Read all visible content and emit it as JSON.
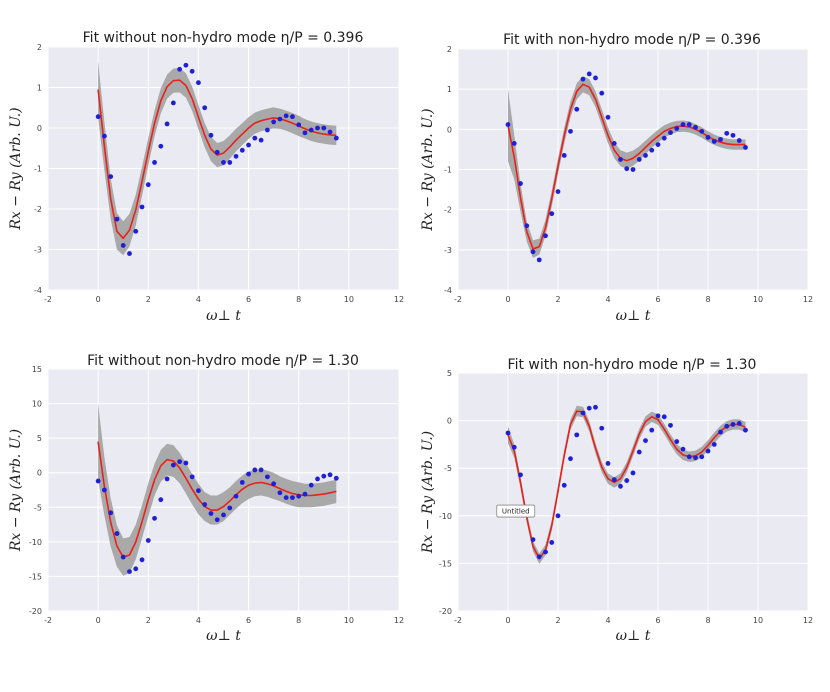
{
  "style": {
    "plot_bg": "#EAEAF2",
    "grid": "#FFFFFF",
    "band_color": "#A9A9A9",
    "fit_color": "#E8211B",
    "point_color": "#1F1FD6"
  },
  "chart_data": [
    {
      "type": "line",
      "title": "Fit without non-hydro mode η/P = 0.396",
      "xlabel": "ω⊥ t",
      "ylabel": "Rx − Ry (Arb. U.)",
      "xlim": [
        -2,
        12
      ],
      "ylim": [
        -4,
        2
      ],
      "xticks": [
        -2,
        0,
        2,
        4,
        6,
        8,
        10,
        12
      ],
      "yticks": [
        -4,
        -3,
        -2,
        -1,
        0,
        1,
        2
      ],
      "grid": true,
      "data_points": {
        "x": [
          0.0,
          0.25,
          0.5,
          0.75,
          1.0,
          1.25,
          1.5,
          1.75,
          2.0,
          2.25,
          2.5,
          2.75,
          3.0,
          3.25,
          3.5,
          3.75,
          4.0,
          4.25,
          4.5,
          4.75,
          5.0,
          5.25,
          5.5,
          5.75,
          6.0,
          6.25,
          6.5,
          6.75,
          7.0,
          7.25,
          7.5,
          7.75,
          8.0,
          8.25,
          8.5,
          8.75,
          9.0,
          9.25,
          9.5
        ],
        "y": [
          0.28,
          -0.2,
          -1.2,
          -2.25,
          -2.9,
          -3.1,
          -2.55,
          -1.95,
          -1.4,
          -0.85,
          -0.45,
          0.1,
          0.62,
          1.45,
          1.55,
          1.4,
          1.12,
          0.5,
          -0.18,
          -0.6,
          -0.85,
          -0.85,
          -0.7,
          -0.55,
          -0.42,
          -0.25,
          -0.3,
          -0.05,
          0.15,
          0.22,
          0.3,
          0.28,
          0.08,
          -0.12,
          -0.05,
          0.0,
          0.0,
          -0.1,
          -0.25
        ]
      },
      "fit": {
        "x": [
          0.0,
          0.25,
          0.5,
          0.75,
          1.0,
          1.25,
          1.5,
          1.75,
          2.0,
          2.25,
          2.5,
          2.75,
          3.0,
          3.25,
          3.5,
          3.75,
          4.0,
          4.25,
          4.5,
          4.75,
          5.0,
          5.25,
          5.5,
          5.75,
          6.0,
          6.25,
          6.5,
          6.75,
          7.0,
          7.25,
          7.5,
          7.75,
          8.0,
          8.25,
          8.5,
          8.75,
          9.0,
          9.25,
          9.5
        ],
        "y": [
          0.95,
          -0.45,
          -1.75,
          -2.55,
          -2.72,
          -2.52,
          -2.02,
          -1.32,
          -0.58,
          0.12,
          0.67,
          1.02,
          1.17,
          1.18,
          1.05,
          0.72,
          0.27,
          -0.18,
          -0.52,
          -0.67,
          -0.62,
          -0.47,
          -0.3,
          -0.15,
          0.0,
          0.12,
          0.18,
          0.22,
          0.25,
          0.23,
          0.18,
          0.12,
          0.05,
          -0.02,
          -0.08,
          -0.12,
          -0.15,
          -0.17,
          -0.18
        ]
      },
      "band_halfwidth": [
        0.7,
        0.6,
        0.5,
        0.45,
        0.42,
        0.4,
        0.38,
        0.36,
        0.34,
        0.32,
        0.31,
        0.3,
        0.3,
        0.3,
        0.3,
        0.3,
        0.3,
        0.3,
        0.3,
        0.3,
        0.3,
        0.29,
        0.28,
        0.27,
        0.27,
        0.26,
        0.26,
        0.26,
        0.26,
        0.25,
        0.25,
        0.25,
        0.25,
        0.24,
        0.24,
        0.24,
        0.24,
        0.24,
        0.24
      ]
    },
    {
      "type": "line",
      "title": "Fit with non-hydro mode η/P = 0.396",
      "xlabel": "ω⊥ t",
      "ylabel": "Rx − Ry (Arb. U.)",
      "xlim": [
        -2,
        12
      ],
      "ylim": [
        -4,
        2
      ],
      "xticks": [
        -2,
        0,
        2,
        4,
        6,
        8,
        10,
        12
      ],
      "yticks": [
        -4,
        -3,
        -2,
        -1,
        0,
        1,
        2
      ],
      "grid": true,
      "data_points": {
        "x": [
          0.0,
          0.25,
          0.5,
          0.75,
          1.0,
          1.25,
          1.5,
          1.75,
          2.0,
          2.25,
          2.5,
          2.75,
          3.0,
          3.25,
          3.5,
          3.75,
          4.0,
          4.25,
          4.5,
          4.75,
          5.0,
          5.25,
          5.5,
          5.75,
          6.0,
          6.25,
          6.5,
          6.75,
          7.0,
          7.25,
          7.5,
          7.75,
          8.0,
          8.25,
          8.5,
          8.75,
          9.0,
          9.25,
          9.5
        ],
        "y": [
          0.12,
          -0.35,
          -1.35,
          -2.4,
          -3.05,
          -3.25,
          -2.65,
          -2.1,
          -1.55,
          -0.65,
          -0.05,
          0.5,
          1.25,
          1.38,
          1.28,
          0.9,
          0.3,
          -0.35,
          -0.75,
          -0.98,
          -1.0,
          -0.75,
          -0.65,
          -0.52,
          -0.38,
          -0.22,
          -0.08,
          0.02,
          0.12,
          0.12,
          0.05,
          -0.05,
          -0.2,
          -0.3,
          -0.25,
          -0.1,
          -0.15,
          -0.28,
          -0.45
        ]
      },
      "fit": {
        "x": [
          0.0,
          0.25,
          0.5,
          0.75,
          1.0,
          1.25,
          1.5,
          1.75,
          2.0,
          2.25,
          2.5,
          2.75,
          3.0,
          3.25,
          3.5,
          3.75,
          4.0,
          4.25,
          4.5,
          4.75,
          5.0,
          5.25,
          5.5,
          5.75,
          6.0,
          6.25,
          6.5,
          6.75,
          7.0,
          7.25,
          7.5,
          7.75,
          8.0,
          8.25,
          8.5,
          8.75,
          9.0,
          9.25,
          9.5
        ],
        "y": [
          0.1,
          -0.7,
          -1.7,
          -2.55,
          -2.98,
          -2.92,
          -2.45,
          -1.72,
          -0.92,
          -0.15,
          0.5,
          0.95,
          1.12,
          1.05,
          0.75,
          0.3,
          -0.15,
          -0.52,
          -0.72,
          -0.78,
          -0.72,
          -0.6,
          -0.45,
          -0.3,
          -0.17,
          -0.05,
          0.02,
          0.07,
          0.08,
          0.06,
          0.0,
          -0.08,
          -0.18,
          -0.26,
          -0.32,
          -0.36,
          -0.38,
          -0.38,
          -0.38
        ]
      },
      "band_halfwidth": [
        0.9,
        0.55,
        0.35,
        0.25,
        0.22,
        0.2,
        0.2,
        0.2,
        0.2,
        0.2,
        0.2,
        0.2,
        0.2,
        0.2,
        0.2,
        0.2,
        0.2,
        0.2,
        0.2,
        0.2,
        0.19,
        0.18,
        0.17,
        0.16,
        0.16,
        0.15,
        0.15,
        0.14,
        0.14,
        0.14,
        0.13,
        0.13,
        0.13,
        0.13,
        0.13,
        0.13,
        0.13,
        0.13,
        0.13
      ]
    },
    {
      "type": "line",
      "title": "Fit without non-hydro mode η/P = 1.30",
      "xlabel": "ω⊥ t",
      "ylabel": "Rx − Ry (Arb. U.)",
      "xlim": [
        -2,
        12
      ],
      "ylim": [
        -20,
        15
      ],
      "xticks": [
        -2,
        0,
        2,
        4,
        6,
        8,
        10,
        12
      ],
      "yticks": [
        -20,
        -15,
        -10,
        -5,
        0,
        5,
        10,
        15
      ],
      "grid": true,
      "data_points": {
        "x": [
          0.0,
          0.25,
          0.5,
          0.75,
          1.0,
          1.25,
          1.5,
          1.75,
          2.0,
          2.25,
          2.5,
          2.75,
          3.0,
          3.25,
          3.5,
          3.75,
          4.0,
          4.25,
          4.5,
          4.75,
          5.0,
          5.25,
          5.5,
          5.75,
          6.0,
          6.25,
          6.5,
          6.75,
          7.0,
          7.25,
          7.5,
          7.75,
          8.0,
          8.25,
          8.5,
          8.75,
          9.0,
          9.25,
          9.5
        ],
        "y": [
          -1.2,
          -2.5,
          -5.8,
          -8.8,
          -12.2,
          -14.3,
          -13.9,
          -12.6,
          -9.8,
          -6.6,
          -3.9,
          -0.9,
          1.1,
          1.6,
          1.4,
          -0.6,
          -2.6,
          -4.6,
          -5.9,
          -6.8,
          -6.1,
          -5.1,
          -3.4,
          -1.4,
          -0.2,
          0.4,
          0.4,
          -0.6,
          -1.6,
          -2.9,
          -3.6,
          -3.6,
          -3.4,
          -3.1,
          -1.8,
          -0.9,
          -0.5,
          -0.3,
          -0.8
        ]
      },
      "fit": {
        "x": [
          0.0,
          0.25,
          0.5,
          0.75,
          1.0,
          1.25,
          1.5,
          1.75,
          2.0,
          2.25,
          2.5,
          2.75,
          3.0,
          3.25,
          3.5,
          3.75,
          4.0,
          4.25,
          4.5,
          4.75,
          5.0,
          5.25,
          5.5,
          5.75,
          6.0,
          6.25,
          6.5,
          6.75,
          7.0,
          7.25,
          7.5,
          7.75,
          8.0,
          8.25,
          8.5,
          8.75,
          9.0,
          9.25,
          9.5
        ],
        "y": [
          4.5,
          -2.0,
          -7.2,
          -10.6,
          -12.2,
          -11.9,
          -10.0,
          -7.1,
          -3.9,
          -1.0,
          1.0,
          1.9,
          1.7,
          0.7,
          -0.8,
          -2.4,
          -3.8,
          -4.9,
          -5.4,
          -5.4,
          -4.9,
          -4.1,
          -3.2,
          -2.4,
          -1.8,
          -1.5,
          -1.4,
          -1.6,
          -1.9,
          -2.3,
          -2.7,
          -3.0,
          -3.2,
          -3.3,
          -3.3,
          -3.2,
          -3.1,
          -2.9,
          -2.7
        ]
      },
      "band_halfwidth": [
        5.5,
        4.2,
        3.5,
        3.0,
        2.7,
        2.6,
        2.5,
        2.4,
        2.4,
        2.3,
        2.3,
        2.3,
        2.3,
        2.2,
        2.2,
        2.2,
        2.2,
        2.1,
        2.1,
        2.1,
        2.1,
        2.0,
        2.0,
        2.0,
        2.0,
        1.9,
        1.9,
        1.9,
        1.9,
        1.8,
        1.8,
        1.8,
        1.8,
        1.7,
        1.7,
        1.7,
        1.7,
        1.7,
        1.7
      ]
    },
    {
      "type": "line",
      "title": "Fit with non-hydro mode η/P = 1.30",
      "xlabel": "ω⊥ t",
      "ylabel": "Rx − Ry (Arb. U.)",
      "xlim": [
        -2,
        12
      ],
      "ylim": [
        -20,
        5
      ],
      "xticks": [
        -2,
        0,
        2,
        4,
        6,
        8,
        10,
        12
      ],
      "yticks": [
        -20,
        -15,
        -10,
        -5,
        0,
        5
      ],
      "grid": true,
      "tooltip": "Untitled",
      "data_points": {
        "x": [
          0.0,
          0.25,
          0.5,
          0.75,
          1.0,
          1.25,
          1.5,
          1.75,
          2.0,
          2.25,
          2.5,
          2.75,
          3.0,
          3.25,
          3.5,
          3.75,
          4.0,
          4.25,
          4.5,
          4.75,
          5.0,
          5.25,
          5.5,
          5.75,
          6.0,
          6.25,
          6.5,
          6.75,
          7.0,
          7.25,
          7.5,
          7.75,
          8.0,
          8.25,
          8.5,
          8.75,
          9.0,
          9.25,
          9.5
        ],
        "y": [
          -1.3,
          -2.8,
          -5.7,
          -9.2,
          -12.5,
          -14.3,
          -13.8,
          -12.8,
          -10.0,
          -6.8,
          -4.0,
          -1.5,
          0.8,
          1.3,
          1.4,
          -0.8,
          -4.5,
          -6.2,
          -6.9,
          -6.3,
          -5.5,
          -3.3,
          -2.1,
          -1.0,
          0.5,
          0.4,
          -0.5,
          -2.2,
          -3.0,
          -3.8,
          -3.9,
          -3.8,
          -3.2,
          -2.5,
          -1.2,
          -0.6,
          -0.4,
          -0.3,
          -1.0
        ]
      },
      "fit": {
        "x": [
          0.0,
          0.25,
          0.5,
          0.75,
          1.0,
          1.25,
          1.5,
          1.75,
          2.0,
          2.25,
          2.5,
          2.75,
          3.0,
          3.25,
          3.5,
          3.75,
          4.0,
          4.25,
          4.5,
          4.75,
          5.0,
          5.25,
          5.5,
          5.75,
          6.0,
          6.25,
          6.5,
          6.75,
          7.0,
          7.25,
          7.5,
          7.75,
          8.0,
          8.25,
          8.5,
          8.75,
          9.0,
          9.25,
          9.5
        ],
        "y": [
          -1.5,
          -3.2,
          -6.5,
          -10.2,
          -13.2,
          -14.5,
          -13.6,
          -11.0,
          -7.4,
          -3.6,
          -0.4,
          1.0,
          0.9,
          -0.6,
          -2.9,
          -4.9,
          -6.1,
          -6.5,
          -6.1,
          -4.9,
          -3.2,
          -1.4,
          -0.1,
          0.4,
          0.1,
          -0.9,
          -2.0,
          -3.0,
          -3.6,
          -3.8,
          -3.7,
          -3.3,
          -2.6,
          -1.8,
          -1.1,
          -0.6,
          -0.4,
          -0.4,
          -0.7
        ]
      },
      "band_halfwidth": [
        0.9,
        0.7,
        0.6,
        0.55,
        0.55,
        0.55,
        0.55,
        0.55,
        0.55,
        0.55,
        0.55,
        0.55,
        0.55,
        0.55,
        0.55,
        0.55,
        0.55,
        0.55,
        0.55,
        0.55,
        0.55,
        0.55,
        0.55,
        0.55,
        0.55,
        0.55,
        0.55,
        0.55,
        0.55,
        0.55,
        0.55,
        0.55,
        0.55,
        0.55,
        0.55,
        0.55,
        0.55,
        0.55,
        0.55
      ]
    }
  ]
}
